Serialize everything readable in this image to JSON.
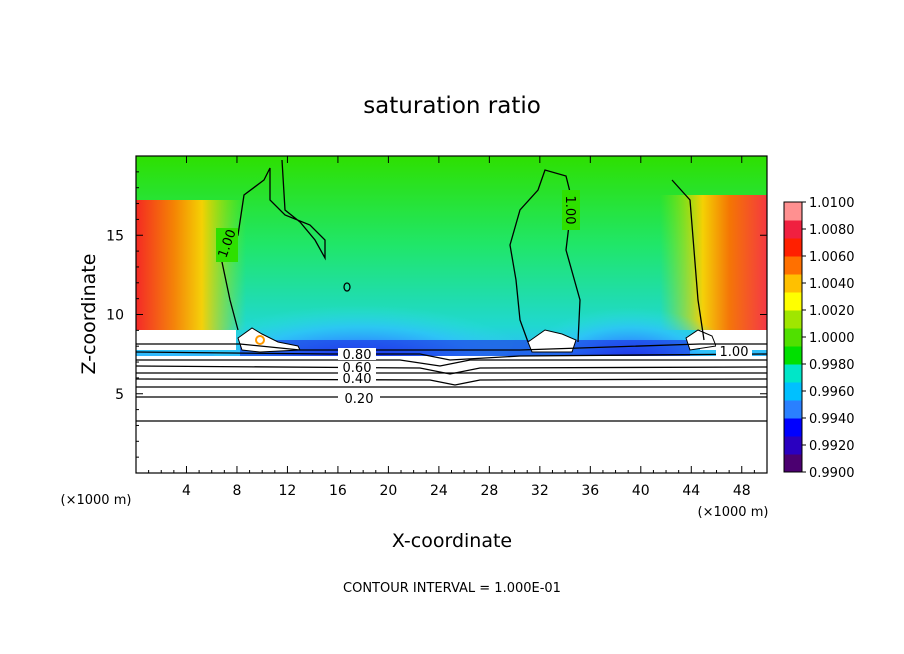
{
  "chart_data": {
    "type": "heatmap",
    "title": "saturation ratio",
    "xlabel": "X-coordinate",
    "ylabel": "Z-coordinate",
    "x_unit": "(×1000 m)",
    "z_unit": "(×1000 m)",
    "xlim": [
      0,
      50
    ],
    "ylim": [
      0,
      20
    ],
    "xticks": [
      "4",
      "8",
      "12",
      "16",
      "20",
      "24",
      "28",
      "32",
      "36",
      "40",
      "44",
      "48"
    ],
    "yticks": [
      "5",
      "10",
      "15"
    ],
    "grid": false,
    "colorbar": {
      "placement": "right",
      "range": [
        0.99,
        1.01
      ],
      "labels": [
        "1.0100",
        "1.0080",
        "1.0060",
        "1.0040",
        "1.0020",
        "1.0000",
        "0.9980",
        "0.9960",
        "0.9940",
        "0.9920",
        "0.9900"
      ],
      "colors": [
        "#4b0070",
        "#2a00c0",
        "#0000ff",
        "#2a80ff",
        "#00c0ff",
        "#00e6c8",
        "#00e000",
        "#50e000",
        "#a0e600",
        "#ffff00",
        "#ffc000",
        "#ff7000",
        "#ff2000",
        "#f02040",
        "#ff9090"
      ]
    },
    "contour_labels": [
      "1.00",
      "1.00",
      "1.00",
      "0.80",
      "0.60",
      "0.40",
      "0.20"
    ],
    "contour_interval_text": "CONTOUR INTERVAL = 1.000E-01"
  }
}
